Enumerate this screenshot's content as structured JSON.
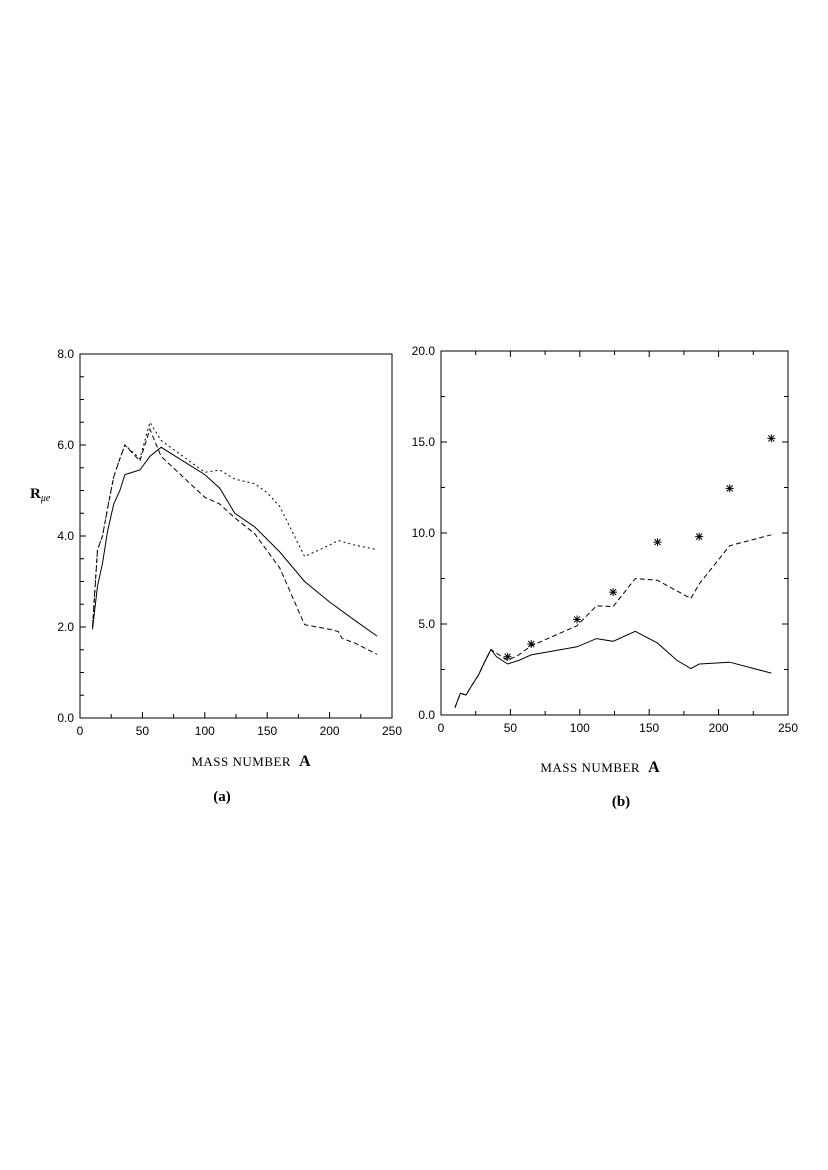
{
  "chart_data": [
    {
      "panel_label": "(a)",
      "type": "line",
      "xlabel_prefix": "MASS NUMBER",
      "xlabel_var": "A",
      "ylabel_main": "R",
      "ylabel_sub": "μe",
      "xlim": [
        0,
        250
      ],
      "ylim": [
        0,
        8
      ],
      "xticks": [
        0,
        50,
        100,
        150,
        200,
        250
      ],
      "xtick_labels": [
        "0",
        "50",
        "100",
        "150",
        "200",
        "250"
      ],
      "yticks": [
        0,
        2,
        4,
        6,
        8
      ],
      "ytick_labels": [
        "0.0",
        "2.0",
        "4.0",
        "6.0",
        "8.0"
      ],
      "grid": false,
      "series": [
        {
          "style": "solid",
          "x": [
            10,
            14,
            18,
            22,
            27,
            32,
            36,
            48,
            56,
            65,
            100,
            112,
            124,
            140,
            160,
            180,
            200,
            220,
            238
          ],
          "y": [
            1.95,
            2.9,
            3.4,
            4.1,
            4.7,
            5.0,
            5.35,
            5.45,
            5.75,
            5.95,
            5.35,
            5.05,
            4.5,
            4.2,
            3.65,
            3.0,
            2.55,
            2.15,
            1.8
          ]
        },
        {
          "style": "dashed",
          "x": [
            10,
            14,
            18,
            22,
            27,
            32,
            36,
            48,
            56,
            65,
            100,
            112,
            124,
            140,
            160,
            180,
            200,
            207,
            210,
            220,
            238
          ],
          "y": [
            2.0,
            3.7,
            4.0,
            4.6,
            5.3,
            5.7,
            6.0,
            5.65,
            6.35,
            5.75,
            4.85,
            4.7,
            4.4,
            4.05,
            3.3,
            2.05,
            1.95,
            1.9,
            1.75,
            1.65,
            1.4
          ]
        },
        {
          "style": "dotted",
          "x": [
            10,
            14,
            18,
            22,
            27,
            32,
            36,
            48,
            56,
            65,
            100,
            112,
            124,
            140,
            150,
            160,
            180,
            200,
            207,
            220,
            238
          ],
          "y": [
            2.0,
            3.7,
            4.0,
            4.6,
            5.3,
            5.7,
            6.0,
            5.7,
            6.5,
            6.1,
            5.4,
            5.45,
            5.25,
            5.15,
            4.95,
            4.65,
            3.55,
            3.8,
            3.9,
            3.8,
            3.7
          ]
        }
      ]
    },
    {
      "panel_label": "(b)",
      "type": "line",
      "xlabel_prefix": "MASS NUMBER",
      "xlabel_var": "A",
      "xlim": [
        0,
        250
      ],
      "ylim": [
        0,
        20
      ],
      "xticks": [
        0,
        50,
        100,
        150,
        200,
        250
      ],
      "xtick_labels": [
        "0",
        "50",
        "100",
        "150",
        "200",
        "250"
      ],
      "yticks": [
        0,
        5,
        10,
        15,
        20
      ],
      "ytick_labels": [
        "0.0",
        "5.0",
        "10.0",
        "15.0",
        "20.0"
      ],
      "grid": false,
      "series": [
        {
          "style": "solid",
          "x": [
            10,
            14,
            18,
            22,
            27,
            32,
            36,
            40,
            48,
            56,
            65,
            98,
            112,
            124,
            140,
            156,
            170,
            180,
            186,
            208,
            238
          ],
          "y": [
            0.4,
            1.2,
            1.1,
            1.6,
            2.2,
            3.0,
            3.6,
            3.2,
            2.8,
            3.0,
            3.3,
            3.75,
            4.2,
            4.05,
            4.6,
            3.95,
            3.0,
            2.55,
            2.8,
            2.9,
            2.3
          ]
        },
        {
          "style": "dashed",
          "x": [
            10,
            14,
            18,
            22,
            27,
            32,
            36,
            40,
            48,
            56,
            65,
            98,
            112,
            124,
            140,
            156,
            180,
            186,
            208,
            238
          ],
          "y": [
            0.4,
            1.2,
            1.1,
            1.6,
            2.2,
            3.0,
            3.6,
            3.4,
            3.0,
            3.3,
            3.8,
            4.9,
            6.0,
            5.95,
            7.5,
            7.4,
            6.4,
            7.2,
            9.3,
            9.9
          ]
        },
        {
          "style": "markers",
          "x": [
            48,
            65,
            98,
            124,
            156,
            186,
            208,
            238
          ],
          "y": [
            3.2,
            3.9,
            5.25,
            6.75,
            9.5,
            9.8,
            12.45,
            15.2
          ]
        }
      ]
    }
  ]
}
